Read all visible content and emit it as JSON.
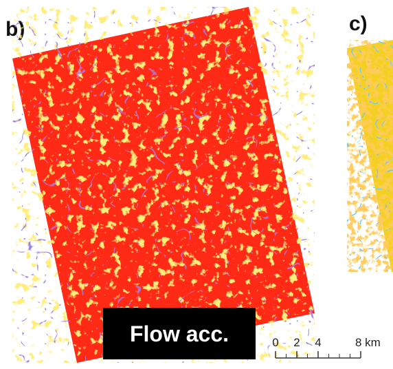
{
  "panels": [
    {
      "label": "b)",
      "caption": "Flow acc."
    },
    {
      "label": "c)"
    }
  ],
  "scale_bar": {
    "ticks": [
      0,
      2,
      4,
      {
        "value": 8,
        "label": "8 km"
      }
    ]
  }
}
